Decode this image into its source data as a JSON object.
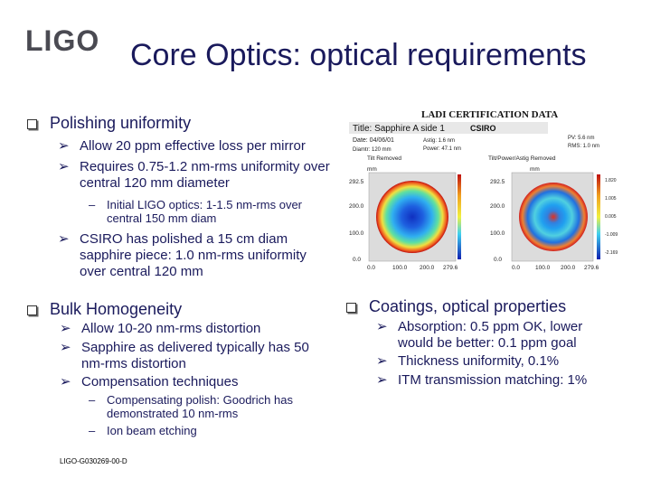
{
  "logo": {
    "text": "LIGO"
  },
  "title": "Core Optics: optical requirements",
  "polishing": {
    "heading": "Polishing uniformity",
    "items": [
      "Allow 20 ppm effective loss per mirror",
      "Requires 0.75-1.2 nm-rms uniformity over central 120 mm diameter"
    ],
    "sub_items": [
      "Initial LIGO optics: 1-1.5 nm-rms over central 150 mm diam"
    ],
    "items2": [
      "CSIRO has polished a 15 cm diam sapphire piece: 1.0 nm-rms uniformity over central 120 mm"
    ]
  },
  "bulk": {
    "heading": "Bulk Homogeneity",
    "items": [
      "Allow 10-20 nm-rms distortion",
      "Sapphire as delivered typically has 50 nm-rms distortion",
      "Compensation techniques"
    ],
    "sub_items": [
      "Compensating polish: Goodrich has demonstrated 10 nm-rms",
      "Ion beam etching"
    ]
  },
  "coatings": {
    "heading": "Coatings, optical properties",
    "items": [
      "Absorption: 0.5 ppm OK, lower would be better: 0.1 ppm goal",
      "Thickness uniformity, 0.1%",
      "ITM transmission matching: 1%"
    ]
  },
  "figure": {
    "header": "LADI CERTIFICATION DATA",
    "title_line": "Title: Sapphire A side 1",
    "csiro": "CSIRO",
    "date": "Date: 04/06/01",
    "diameter": "Diamtr: 120 mm",
    "astig": "Astig: 1.6 nm",
    "power": "Power: 47.1 nm",
    "pv": "PV: 5.6 nm",
    "rms": "RMS: 1.0 nm",
    "left_label": "Tilt Removed",
    "right_label": "Tilt/Power/Astig Removed",
    "unit": "mm",
    "yticks": [
      "292.5",
      "200.0",
      "100.0",
      "0.0"
    ],
    "xticks": [
      "0.0",
      "100.0",
      "200.0",
      "279.6"
    ],
    "xticks_right": [
      "0.0",
      "100.0",
      "200.0",
      "279.6"
    ],
    "cbar_right": [
      "1.820",
      "1.005",
      "0.005",
      "-1.009",
      "-2.169"
    ]
  },
  "footer": "LIGO-G030269-00-D",
  "colors": {
    "text": "#1a1a5c",
    "logo": "#4a4a52"
  }
}
